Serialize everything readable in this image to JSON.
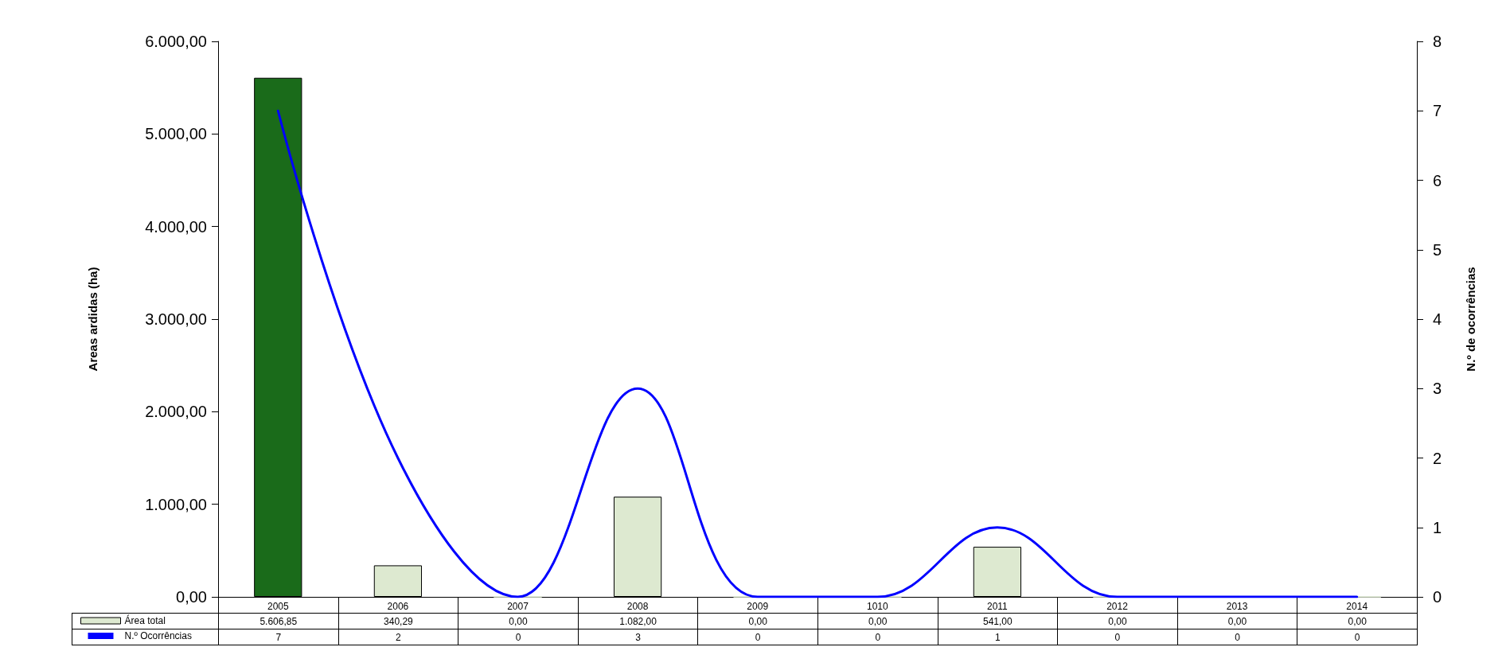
{
  "chart_data": {
    "type": "bar",
    "ylabel": "Areas ardidas (ha)",
    "y2label": "N.º de ocorrências",
    "categories": [
      "2005",
      "2006",
      "2007",
      "2008",
      "2009",
      "1010",
      "2011",
      "2012",
      "2013",
      "2014"
    ],
    "series": [
      {
        "name": "Área total",
        "color": "#dde9d0",
        "colors": [
          "#1a6b1a",
          "#dde9d0",
          "#dde9d0",
          "#dde9d0",
          "#dde9d0",
          "#dde9d0",
          "#dde9d0",
          "#dde9d0",
          "#dde9d0",
          "#dde9d0"
        ],
        "values": [
          5606.85,
          340.29,
          0,
          1082,
          0,
          0,
          541,
          0,
          0,
          0
        ],
        "value_labels": [
          "5.606,85",
          "340,29",
          "0,00",
          "1.082,00",
          "0,00",
          "0,00",
          "541,00",
          "0,00",
          "0,00",
          "0,00"
        ]
      },
      {
        "name": "N.º Ocorrências",
        "type": "line",
        "axis": "y2",
        "color": "#0000ff",
        "values": [
          7,
          2,
          0,
          3,
          0,
          0,
          1,
          0,
          0,
          0
        ],
        "value_labels": [
          "7",
          "2",
          "0",
          "3",
          "0",
          "0",
          "1",
          "0",
          "0",
          "0"
        ]
      }
    ],
    "ylim": [
      0,
      6000
    ],
    "yticks": [
      {
        "value": 0,
        "label": "0,00"
      },
      {
        "value": 1000,
        "label": "1.000,00"
      },
      {
        "value": 2000,
        "label": "2.000,00"
      },
      {
        "value": 3000,
        "label": "3.000,00"
      },
      {
        "value": 4000,
        "label": "4.000,00"
      },
      {
        "value": 5000,
        "label": "5.000,00"
      },
      {
        "value": 6000,
        "label": "6.000,00"
      }
    ],
    "y2lim": [
      0,
      8
    ],
    "y2ticks": [
      0,
      1,
      2,
      3,
      4,
      5,
      6,
      7,
      8
    ],
    "grid": false,
    "legend": "bottom left",
    "marker": "none",
    "line_style": "solid"
  }
}
